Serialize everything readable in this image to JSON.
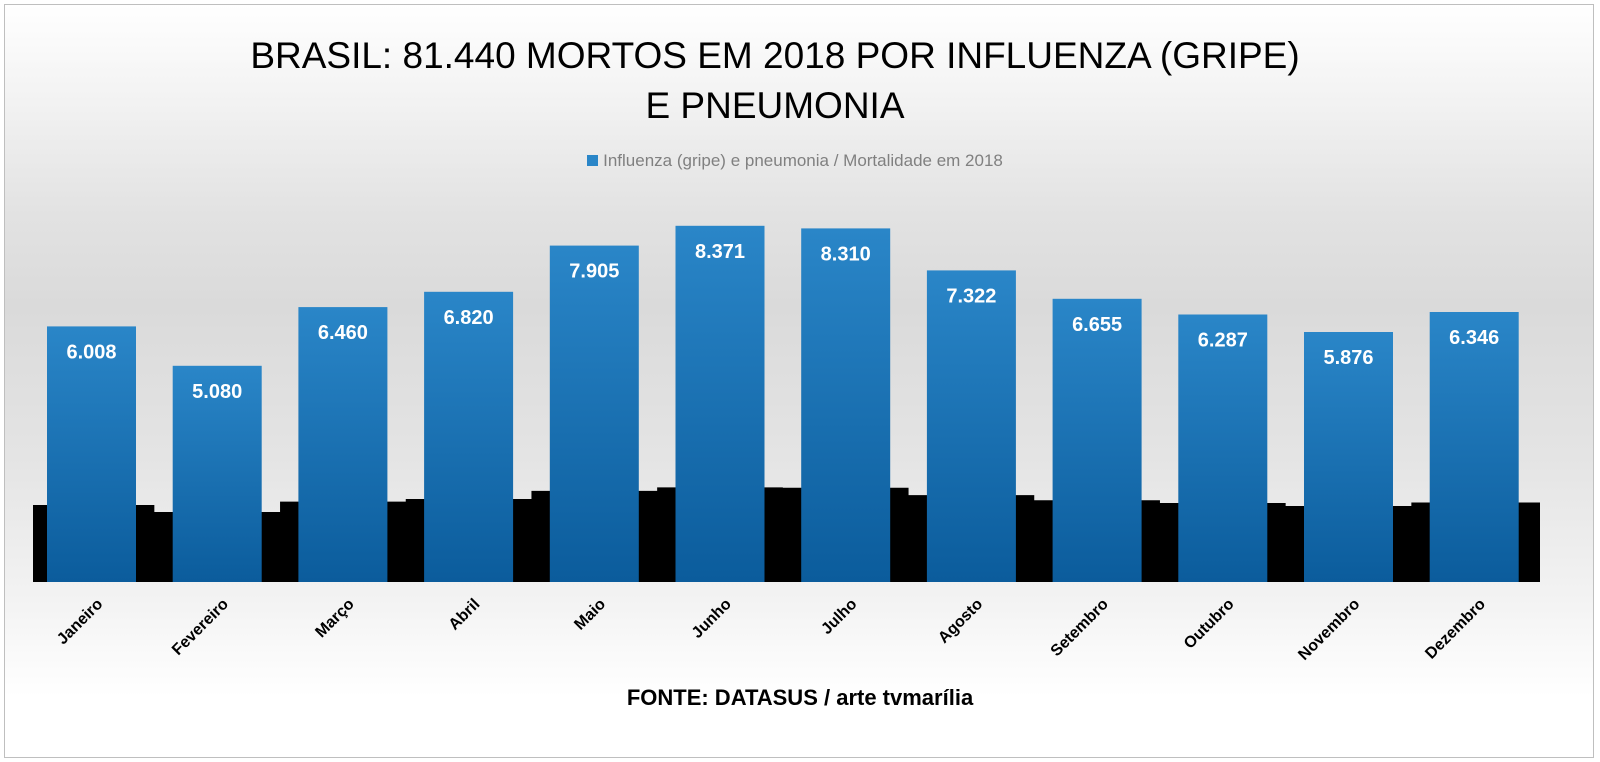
{
  "chart_data": {
    "type": "bar",
    "title": [
      "BRASIL:  81.440 MORTOS EM 2018 POR INFLUENZA (GRIPE)",
      "E PNEUMONIA"
    ],
    "series": [
      {
        "name": "Influenza (gripe) e pneumonia / Mortalidade em 2018",
        "values": [
          6008,
          5080,
          6460,
          6820,
          7905,
          8371,
          8310,
          7322,
          6655,
          6287,
          5876,
          6346
        ],
        "data_labels": [
          "6.008",
          "5.080",
          "6.460",
          "6.820",
          "7.905",
          "8.371",
          "8.310",
          "7.322",
          "6.655",
          "6.287",
          "5.876",
          "6.346"
        ]
      }
    ],
    "categories": [
      "Janeiro",
      "Fevereiro",
      "Março",
      "Abril",
      "Maio",
      "Junho",
      "Julho",
      "Agosto",
      "Setembro",
      "Outubro",
      "Novembro",
      "Dezembro"
    ],
    "ylim": [
      0,
      9000
    ],
    "grid": false,
    "legend_position": "top",
    "source": "FONTE: DATASUS / arte tvmarília",
    "colors": {
      "bar_top": "#2a86c8",
      "bar_bottom": "#0b5c9c",
      "shadow": "#000000"
    }
  }
}
